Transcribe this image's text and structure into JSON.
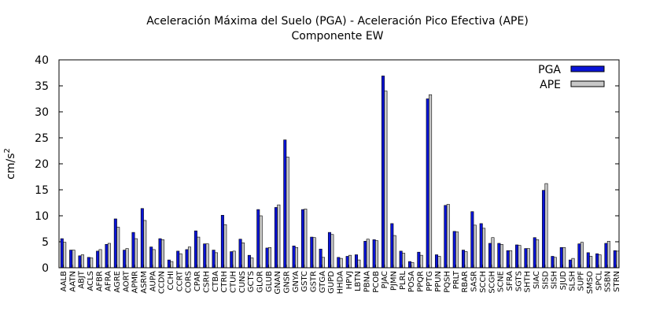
{
  "chart_data": {
    "type": "bar",
    "title": "Aceleración Máxima del Suelo (PGA) -  Aceleración Pico Efectiva (APE)",
    "subtitle": "Componente EW",
    "ylabel_main": "cm/s",
    "ylabel_sup": "2",
    "ylim": [
      0,
      40
    ],
    "yticks": [
      0,
      5,
      10,
      15,
      20,
      25,
      30,
      35,
      40
    ],
    "legend_position": "top-right",
    "categories": [
      "AALB",
      "AATN",
      "ABJT",
      "ACLS",
      "AFBR",
      "AFRA",
      "AGRE",
      "AORT",
      "APMR",
      "ASRM",
      "AUPA",
      "CCDN",
      "CCHI",
      "CCRT",
      "CORS",
      "CPAR",
      "CSRH",
      "CTBA",
      "CTRH",
      "CTUH",
      "CUNS",
      "GCTS",
      "GLOR",
      "GLUB",
      "GNAN",
      "GNSR",
      "GNYA",
      "GSTC",
      "GSTR",
      "GTGA",
      "GUPD",
      "HHDA",
      "HPVJ",
      "LBTN",
      "PBNA",
      "PCOB",
      "PJAC",
      "PJMN",
      "PLRL",
      "POSA",
      "PPQR",
      "PPTG",
      "PPUN",
      "PQSH",
      "PRLT",
      "RBAR",
      "SASR",
      "SCCH",
      "SCGH",
      "SCNE",
      "SFRA",
      "SGTS",
      "SHTH",
      "SIAC",
      "SISD",
      "SISH",
      "SJUD",
      "SLSH",
      "SUPF",
      "SMSO",
      "SPCL",
      "SSBN",
      "STRN"
    ],
    "series": [
      {
        "name": "PGA",
        "color": "#0a14d8",
        "values": [
          5.6,
          3.4,
          2.3,
          2.0,
          3.2,
          4.5,
          9.4,
          3.4,
          6.8,
          11.4,
          4.0,
          5.6,
          1.5,
          3.2,
          3.5,
          7.1,
          4.6,
          3.4,
          10.1,
          3.1,
          5.5,
          2.4,
          11.2,
          3.8,
          11.6,
          24.6,
          4.2,
          11.2,
          5.9,
          3.6,
          6.8,
          2.0,
          2.2,
          2.5,
          5.1,
          5.4,
          36.9,
          8.5,
          3.2,
          1.2,
          3.0,
          32.5,
          2.5,
          12.0,
          7.0,
          3.4,
          10.8,
          8.5,
          4.7,
          4.7,
          3.3,
          4.4,
          3.7,
          5.8,
          14.9,
          2.2,
          3.9,
          1.5,
          4.6,
          2.9,
          2.7,
          4.7,
          3.3
        ]
      },
      {
        "name": "APE",
        "color": "#c8c8c8",
        "values": [
          4.9,
          3.4,
          2.5,
          1.9,
          3.5,
          4.7,
          7.8,
          3.7,
          5.6,
          9.1,
          3.5,
          5.4,
          1.2,
          2.7,
          4.0,
          5.9,
          4.6,
          2.9,
          8.3,
          3.2,
          4.8,
          1.9,
          10.0,
          3.9,
          12.1,
          21.3,
          3.9,
          11.3,
          5.8,
          2.0,
          6.4,
          1.8,
          2.4,
          1.5,
          5.5,
          5.2,
          34.0,
          6.2,
          2.8,
          1.0,
          2.4,
          33.3,
          2.2,
          12.2,
          6.9,
          3.1,
          8.2,
          7.6,
          5.8,
          4.5,
          3.3,
          4.3,
          3.7,
          5.4,
          16.2,
          2.0,
          3.9,
          1.8,
          4.9,
          2.2,
          2.5,
          5.1,
          3.2
        ]
      }
    ]
  }
}
